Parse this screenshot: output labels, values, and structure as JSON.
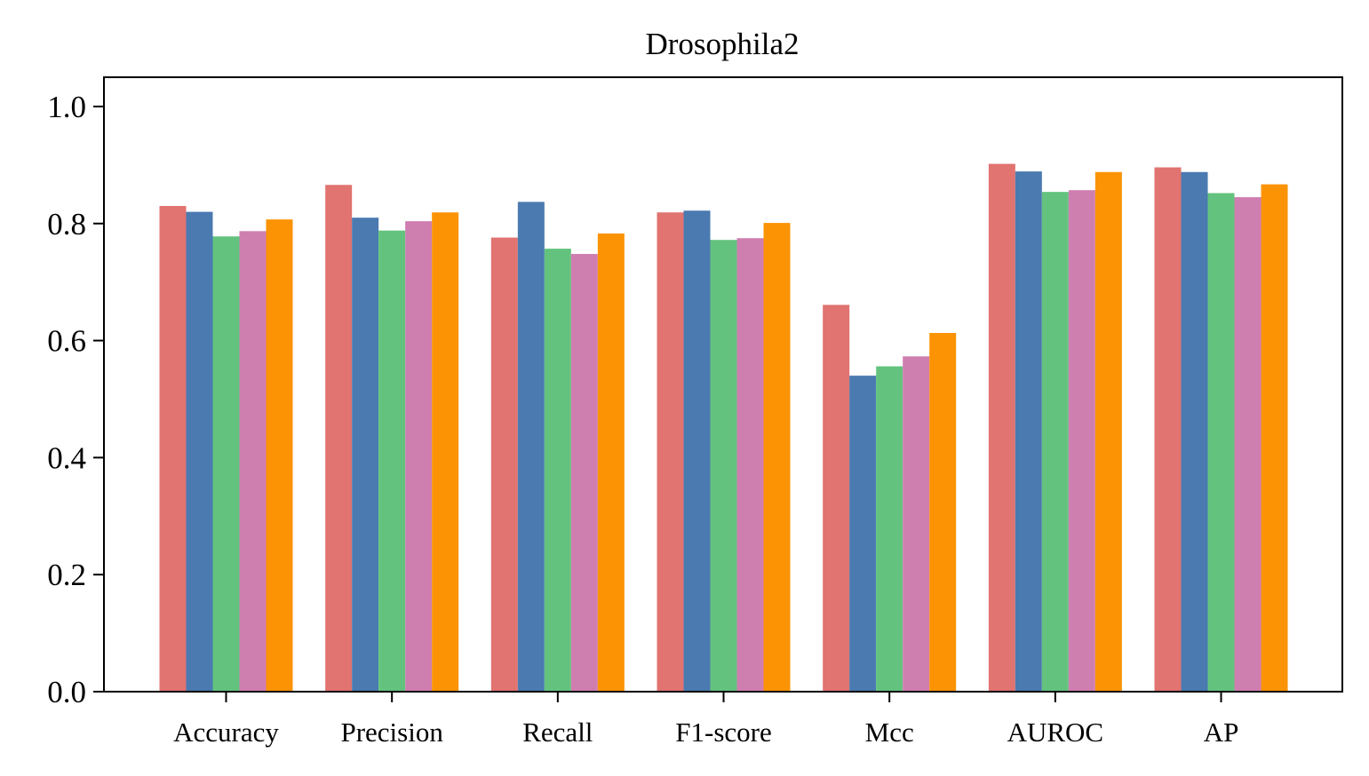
{
  "chart_data": {
    "type": "bar",
    "title": "Drosophila2",
    "xlabel": "",
    "ylabel": "",
    "categories": [
      "Accuracy",
      "Precision",
      "Recall",
      "F1-score",
      "Mcc",
      "AUROC",
      "AP"
    ],
    "ylim": [
      0,
      1.05
    ],
    "yticks": [
      "0.0",
      "0.2",
      "0.4",
      "0.6",
      "0.8",
      "1.0"
    ],
    "grid": false,
    "legend": "none",
    "series": [
      {
        "color": "#E17370",
        "values": [
          0.83,
          0.866,
          0.776,
          0.819,
          0.661,
          0.902,
          0.896
        ]
      },
      {
        "color": "#4A7AB0",
        "values": [
          0.82,
          0.81,
          0.837,
          0.822,
          0.54,
          0.889,
          0.888
        ]
      },
      {
        "color": "#63C37E",
        "values": [
          0.778,
          0.788,
          0.757,
          0.772,
          0.556,
          0.854,
          0.852
        ]
      },
      {
        "color": "#CF7EB0",
        "values": [
          0.787,
          0.804,
          0.748,
          0.775,
          0.573,
          0.857,
          0.845
        ]
      },
      {
        "color": "#FB9304",
        "values": [
          0.807,
          0.819,
          0.783,
          0.801,
          0.613,
          0.888,
          0.867
        ]
      }
    ]
  }
}
